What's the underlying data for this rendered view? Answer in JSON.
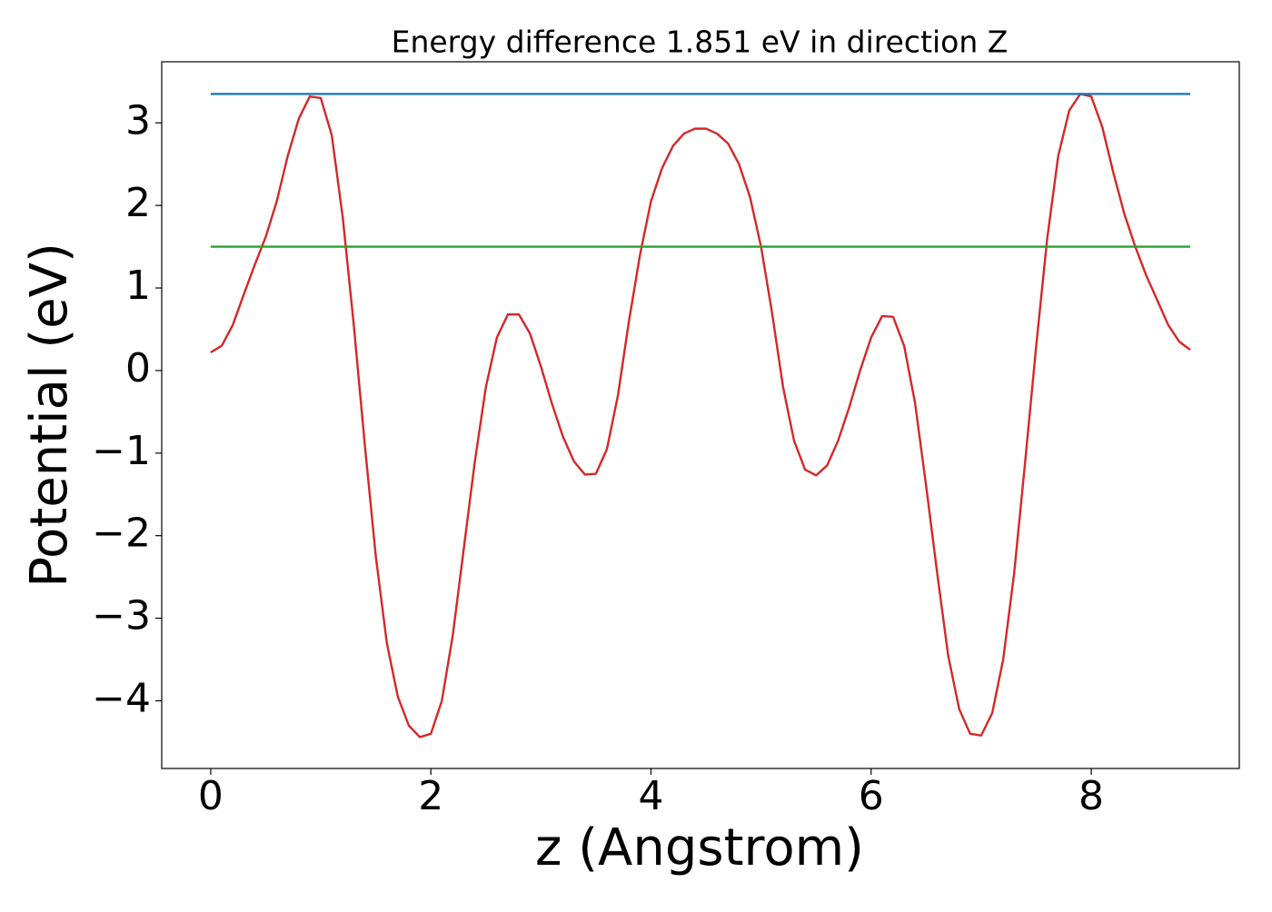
{
  "chart_data": {
    "type": "line",
    "title": "Energy difference 1.851 eV in direction Z",
    "x_label": "z (Angstrom)",
    "y_label": "Potential (eV)",
    "xlim": [
      -0.445,
      9.345
    ],
    "ylim": [
      -4.82,
      3.74
    ],
    "xticks": [
      0,
      2,
      4,
      6,
      8
    ],
    "yticks": [
      {
        "value": -4,
        "label": "−4"
      },
      {
        "value": -3,
        "label": "−3"
      },
      {
        "value": -2,
        "label": "−2"
      },
      {
        "value": -1,
        "label": "−1"
      },
      0,
      1,
      2,
      3
    ],
    "grid": false,
    "series": [
      {
        "color": "#d62728",
        "x": [
          0,
          0.1,
          0.2,
          0.3,
          0.4,
          0.5,
          0.6,
          0.7,
          0.8,
          0.9,
          1,
          1.1,
          1.2,
          1.3,
          1.4,
          1.5,
          1.6,
          1.7,
          1.8,
          1.9,
          2,
          2.1,
          2.2,
          2.3,
          2.4,
          2.5,
          2.6,
          2.7,
          2.8,
          2.9,
          3,
          3.1,
          3.2,
          3.3,
          3.4,
          3.5,
          3.6,
          3.7,
          3.8,
          3.9,
          4,
          4.1,
          4.2,
          4.3,
          4.4,
          4.5,
          4.6,
          4.7,
          4.8,
          4.9,
          5,
          5.1,
          5.2,
          5.3,
          5.4,
          5.5,
          5.6,
          5.7,
          5.8,
          5.9,
          6,
          6.1,
          6.2,
          6.3,
          6.4,
          6.5,
          6.6,
          6.7,
          6.8,
          6.9,
          7,
          7.1,
          7.2,
          7.3,
          7.4,
          7.5,
          7.6,
          7.7,
          7.8,
          7.9,
          8,
          8.1,
          8.2,
          8.3,
          8.4,
          8.5,
          8.6,
          8.7,
          8.8,
          8.9
        ],
        "values": [
          0.22,
          0.3,
          0.55,
          0.92,
          1.28,
          1.62,
          2.05,
          2.6,
          3.05,
          3.32,
          3.3,
          2.85,
          1.85,
          0.55,
          -0.9,
          -2.25,
          -3.3,
          -3.95,
          -4.3,
          -4.44,
          -4.4,
          -4.0,
          -3.2,
          -2.15,
          -1.1,
          -0.2,
          0.4,
          0.68,
          0.68,
          0.45,
          0.05,
          -0.4,
          -0.8,
          -1.1,
          -1.26,
          -1.25,
          -0.95,
          -0.3,
          0.6,
          1.4,
          2.05,
          2.45,
          2.72,
          2.87,
          2.93,
          2.93,
          2.87,
          2.75,
          2.5,
          2.1,
          1.5,
          0.7,
          -0.2,
          -0.85,
          -1.2,
          -1.27,
          -1.15,
          -0.85,
          -0.45,
          0.0,
          0.4,
          0.66,
          0.65,
          0.3,
          -0.4,
          -1.4,
          -2.45,
          -3.45,
          -4.1,
          -4.4,
          -4.42,
          -4.15,
          -3.5,
          -2.45,
          -1.1,
          0.3,
          1.6,
          2.6,
          3.15,
          3.35,
          3.32,
          2.95,
          2.4,
          1.9,
          1.5,
          1.15,
          0.85,
          0.55,
          0.35,
          0.25
        ]
      },
      {
        "color": "#1f77b4",
        "x": [
          0,
          8.9
        ],
        "values": [
          3.35,
          3.35
        ]
      },
      {
        "color": "#2ca02c",
        "x": [
          0,
          8.9
        ],
        "values": [
          1.5,
          1.5
        ]
      }
    ]
  }
}
